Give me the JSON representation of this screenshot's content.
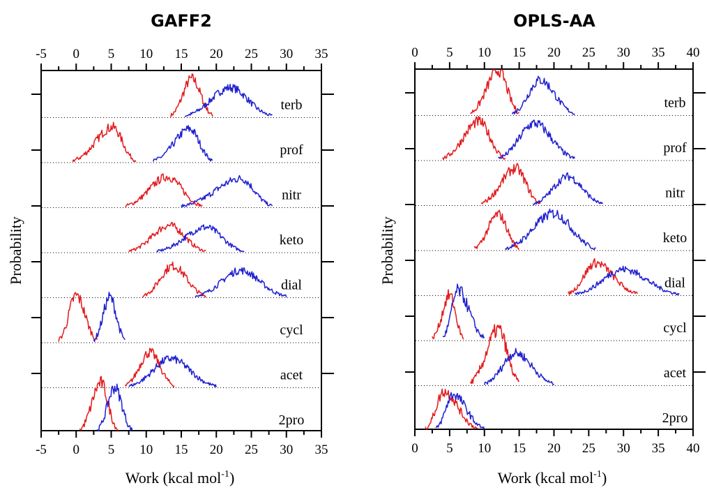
{
  "chart_data": [
    {
      "type": "line",
      "title": "GAFF2",
      "xlabel": "Work (kcal mol",
      "xlabel_sup": "-1",
      "ylabel": "Probability",
      "xlim": [
        -5,
        35
      ],
      "xticks": [
        -5,
        0,
        5,
        10,
        15,
        20,
        25,
        30,
        35
      ],
      "series_colors": {
        "red": "#e31a1c",
        "blue": "#1f1fcf"
      },
      "molecules": [
        {
          "label": "terb",
          "red": {
            "range": [
              13.5,
              19.5
            ],
            "peak": 16.5,
            "height": 0.86
          },
          "blue": {
            "range": [
              15.5,
              28
            ],
            "peak": 22,
            "height": 0.66
          }
        },
        {
          "label": "prof",
          "red": {
            "range": [
              -0.5,
              8.5
            ],
            "peak": 5.2,
            "height": 0.78
          },
          "blue": {
            "range": [
              11,
              19.5
            ],
            "peak": 16.2,
            "height": 0.74
          }
        },
        {
          "label": "nitr",
          "red": {
            "range": [
              7,
              18
            ],
            "peak": 13,
            "height": 0.68
          },
          "blue": {
            "range": [
              15,
              28
            ],
            "peak": 23.5,
            "height": 0.64
          }
        },
        {
          "label": "keto",
          "red": {
            "range": [
              7.5,
              18.5
            ],
            "peak": 13.3,
            "height": 0.6
          },
          "blue": {
            "range": [
              11.5,
              24
            ],
            "peak": 18.5,
            "height": 0.56
          }
        },
        {
          "label": "dial",
          "red": {
            "range": [
              9.5,
              18.5
            ],
            "peak": 13.8,
            "height": 0.7
          },
          "blue": {
            "range": [
              17,
              30
            ],
            "peak": 23.5,
            "height": 0.6
          }
        },
        {
          "label": "cycl",
          "red": {
            "range": [
              -2.5,
              3
            ],
            "peak": 0,
            "height": 1.04
          },
          "blue": {
            "range": [
              2.5,
              7
            ],
            "peak": 4.8,
            "height": 1.0
          }
        },
        {
          "label": "acet",
          "red": {
            "range": [
              7,
              14
            ],
            "peak": 10.5,
            "height": 0.78
          },
          "blue": {
            "range": [
              7.5,
              20
            ],
            "peak": 13.5,
            "height": 0.64
          }
        },
        {
          "label": "2pro",
          "red": {
            "range": [
              0.5,
              6
            ],
            "peak": 3.5,
            "height": 1.1
          },
          "blue": {
            "range": [
              3,
              8
            ],
            "peak": 5.5,
            "height": 1.0
          }
        }
      ]
    },
    {
      "type": "line",
      "title": "OPLS-AA",
      "xlabel": "Work (kcal mol",
      "xlabel_sup": "-1",
      "ylabel": "Probability",
      "xlim": [
        0,
        40
      ],
      "xticks": [
        0,
        5,
        10,
        15,
        20,
        25,
        30,
        35,
        40
      ],
      "series_colors": {
        "red": "#e31a1c",
        "blue": "#1f1fcf"
      },
      "molecules": [
        {
          "label": "terb",
          "red": {
            "range": [
              8,
              15
            ],
            "peak": 12,
            "height": 1.0
          },
          "blue": {
            "range": [
              14,
              23
            ],
            "peak": 18,
            "height": 0.78
          }
        },
        {
          "label": "prof",
          "red": {
            "range": [
              4,
              13
            ],
            "peak": 9.2,
            "height": 0.86
          },
          "blue": {
            "range": [
              12,
              23
            ],
            "peak": 17.2,
            "height": 0.82
          }
        },
        {
          "label": "nitr",
          "red": {
            "range": [
              9.5,
              18
            ],
            "peak": 14.5,
            "height": 0.82
          },
          "blue": {
            "range": [
              17,
              27
            ],
            "peak": 22,
            "height": 0.64
          }
        },
        {
          "label": "keto",
          "red": {
            "range": [
              8.5,
              15
            ],
            "peak": 12,
            "height": 0.8
          },
          "blue": {
            "range": [
              13,
              26
            ],
            "peak": 20,
            "height": 0.82
          }
        },
        {
          "label": "dial",
          "red": {
            "range": [
              22,
              32
            ],
            "peak": 26,
            "height": 0.72
          },
          "blue": {
            "range": [
              23,
              38
            ],
            "peak": 30,
            "height": 0.58
          }
        },
        {
          "label": "cycl",
          "red": {
            "range": [
              2.5,
              7
            ],
            "peak": 5,
            "height": 1.0
          },
          "blue": {
            "range": [
              4,
              10
            ],
            "peak": 6.2,
            "height": 1.1
          }
        },
        {
          "label": "acet",
          "red": {
            "range": [
              8,
              15
            ],
            "peak": 12,
            "height": 1.24
          },
          "blue": {
            "range": [
              10,
              20
            ],
            "peak": 14.5,
            "height": 0.72
          }
        },
        {
          "label": "2pro",
          "red": {
            "range": [
              1.5,
              9
            ],
            "peak": 4.2,
            "height": 0.86
          },
          "blue": {
            "range": [
              3,
              10
            ],
            "peak": 5.5,
            "height": 0.8
          }
        }
      ]
    }
  ]
}
